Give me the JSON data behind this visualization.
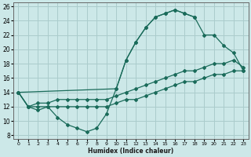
{
  "bg_color": "#cce8e8",
  "grid_color": "#aacccc",
  "line_color": "#1a6b5a",
  "xlabel": "Humidex (Indice chaleur)",
  "xlim": [
    -0.5,
    23.5
  ],
  "ylim": [
    7.5,
    26.5
  ],
  "xticks": [
    0,
    1,
    2,
    3,
    4,
    5,
    6,
    7,
    8,
    9,
    10,
    11,
    12,
    13,
    14,
    15,
    16,
    17,
    18,
    19,
    20,
    21,
    22,
    23
  ],
  "yticks": [
    8,
    10,
    12,
    14,
    16,
    18,
    20,
    22,
    24,
    26
  ],
  "line1_x": [
    0,
    1,
    2,
    3,
    4,
    5,
    6,
    7,
    8,
    9,
    10,
    11,
    12,
    13,
    14,
    15,
    16,
    17,
    18
  ],
  "line1_y": [
    14,
    12,
    11.5,
    12,
    10.5,
    9.5,
    9,
    8.5,
    9,
    11,
    14.5,
    18.5,
    21,
    23,
    24.5,
    25,
    25.5,
    25,
    24.5
  ],
  "line2_x": [
    0,
    10,
    11,
    12,
    13,
    14,
    15,
    16,
    17,
    18,
    19,
    20,
    21,
    22,
    23
  ],
  "line2_y": [
    14,
    14.5,
    18.5,
    21,
    23,
    24.5,
    25,
    25.5,
    25,
    24.5,
    22,
    22,
    20.5,
    19.5,
    17
  ],
  "line3_x": [
    0,
    1,
    2,
    3,
    4,
    5,
    6,
    7,
    8,
    9,
    10,
    11,
    12,
    13,
    14,
    15,
    16,
    17,
    18,
    19,
    20,
    21,
    22,
    23
  ],
  "line3_y": [
    14,
    12,
    12.5,
    12.5,
    13,
    13,
    13,
    13,
    13,
    13,
    13.5,
    14,
    14.5,
    15,
    15.5,
    16,
    16.5,
    17,
    17,
    17.5,
    18,
    18,
    18.5,
    17.5
  ],
  "line4_x": [
    0,
    1,
    2,
    3,
    4,
    5,
    6,
    7,
    8,
    9,
    10,
    11,
    12,
    13,
    14,
    15,
    16,
    17,
    18,
    19,
    20,
    21,
    22,
    23
  ],
  "line4_y": [
    14,
    12,
    12,
    12,
    12,
    12,
    12,
    12,
    12,
    12,
    12.5,
    13,
    13,
    13.5,
    14,
    14.5,
    15,
    15.5,
    15.5,
    16,
    16.5,
    16.5,
    17,
    17
  ]
}
